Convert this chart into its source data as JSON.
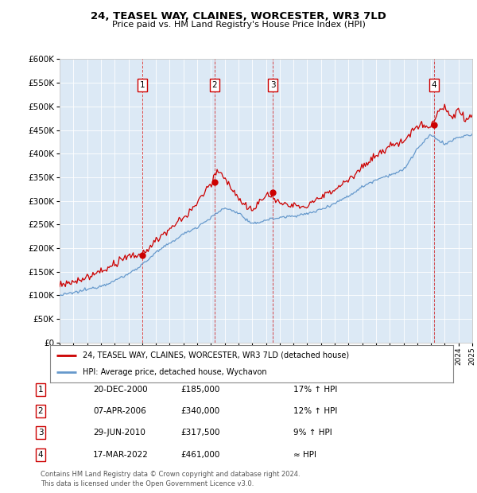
{
  "title": "24, TEASEL WAY, CLAINES, WORCESTER, WR3 7LD",
  "subtitle": "Price paid vs. HM Land Registry's House Price Index (HPI)",
  "ytick_values": [
    0,
    50000,
    100000,
    150000,
    200000,
    250000,
    300000,
    350000,
    400000,
    450000,
    500000,
    550000,
    600000
  ],
  "x_start_year": 1995,
  "x_end_year": 2025,
  "bg_color": "#dce9f5",
  "grid_color": "#ffffff",
  "red_color": "#cc0000",
  "blue_color": "#6699cc",
  "sale_points": [
    {
      "year": 2001.0,
      "price": 185000,
      "label": "1"
    },
    {
      "year": 2006.27,
      "price": 340000,
      "label": "2"
    },
    {
      "year": 2010.49,
      "price": 317500,
      "label": "3"
    },
    {
      "year": 2022.21,
      "price": 461000,
      "label": "4"
    }
  ],
  "legend_entries": [
    {
      "color": "#cc0000",
      "text": "24, TEASEL WAY, CLAINES, WORCESTER, WR3 7LD (detached house)"
    },
    {
      "color": "#6699cc",
      "text": "HPI: Average price, detached house, Wychavon"
    }
  ],
  "table_rows": [
    {
      "num": "1",
      "date": "20-DEC-2000",
      "price": "£185,000",
      "change": "17% ↑ HPI"
    },
    {
      "num": "2",
      "date": "07-APR-2006",
      "price": "£340,000",
      "change": "12% ↑ HPI"
    },
    {
      "num": "3",
      "date": "29-JUN-2010",
      "price": "£317,500",
      "change": "9% ↑ HPI"
    },
    {
      "num": "4",
      "date": "17-MAR-2022",
      "price": "£461,000",
      "change": "≈ HPI"
    }
  ],
  "footnote": "Contains HM Land Registry data © Crown copyright and database right 2024.\nThis data is licensed under the Open Government Licence v3.0."
}
